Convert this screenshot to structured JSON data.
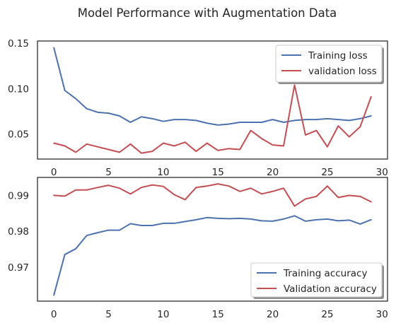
{
  "chart_data": {
    "title": "Model Performance with Augmentation Data",
    "colors": {
      "training": "#4c72b0",
      "validation": "#c44e52"
    },
    "charts": [
      {
        "type": "line",
        "title": "",
        "xlabel": "",
        "ylabel": "",
        "xlim": [
          -1.5,
          30.5
        ],
        "ylim": [
          0.0225,
          0.1525
        ],
        "xticks": [
          0,
          5,
          10,
          15,
          20,
          25,
          30
        ],
        "yticks": [
          0.05,
          0.1,
          0.15
        ],
        "ytick_labels": [
          "0.05",
          "0.10",
          "0.15"
        ],
        "legend": "top-right",
        "grid": false,
        "x": [
          0,
          1,
          2,
          3,
          4,
          5,
          6,
          7,
          8,
          9,
          10,
          11,
          12,
          13,
          14,
          15,
          16,
          17,
          18,
          19,
          20,
          21,
          22,
          23,
          24,
          25,
          26,
          27,
          28,
          29
        ],
        "series": [
          {
            "name": "Training loss",
            "color_key": "training",
            "values": [
              0.145,
              0.098,
              0.089,
              0.078,
              0.074,
              0.073,
              0.07,
              0.063,
              0.069,
              0.067,
              0.064,
              0.066,
              0.066,
              0.065,
              0.062,
              0.06,
              0.061,
              0.063,
              0.063,
              0.063,
              0.066,
              0.063,
              0.065,
              0.066,
              0.066,
              0.067,
              0.066,
              0.065,
              0.067,
              0.07
            ]
          },
          {
            "name": "validation loss",
            "color_key": "validation",
            "values": [
              0.04,
              0.037,
              0.03,
              0.039,
              0.036,
              0.033,
              0.03,
              0.039,
              0.029,
              0.031,
              0.04,
              0.037,
              0.041,
              0.031,
              0.04,
              0.032,
              0.034,
              0.033,
              0.054,
              0.045,
              0.038,
              0.037,
              0.104,
              0.049,
              0.054,
              0.036,
              0.059,
              0.047,
              0.058,
              0.091
            ]
          }
        ]
      },
      {
        "type": "line",
        "title": "",
        "xlabel": "",
        "ylabel": "",
        "xlim": [
          -1.5,
          30.5
        ],
        "ylim": [
          0.9605,
          0.995
        ],
        "xticks": [
          0,
          5,
          10,
          15,
          20,
          25,
          30
        ],
        "yticks": [
          0.97,
          0.98,
          0.99
        ],
        "ytick_labels": [
          "0.97",
          "0.98",
          "0.99"
        ],
        "legend": "bottom-right",
        "grid": false,
        "x": [
          0,
          1,
          2,
          3,
          4,
          5,
          6,
          7,
          8,
          9,
          10,
          11,
          12,
          13,
          14,
          15,
          16,
          17,
          18,
          19,
          20,
          21,
          22,
          23,
          24,
          25,
          26,
          27,
          28,
          29
        ],
        "series": [
          {
            "name": "Training accuracy",
            "color_key": "training",
            "values": [
              0.9622,
              0.9735,
              0.9751,
              0.9788,
              0.9796,
              0.9803,
              0.9803,
              0.9821,
              0.9816,
              0.9816,
              0.9822,
              0.9822,
              0.9827,
              0.9832,
              0.9838,
              0.9836,
              0.9835,
              0.9836,
              0.9834,
              0.9829,
              0.9828,
              0.9834,
              0.9843,
              0.9828,
              0.9832,
              0.9834,
              0.9829,
              0.9831,
              0.982,
              0.9832
            ]
          },
          {
            "name": "Validation accuracy",
            "color_key": "validation",
            "values": [
              0.99,
              0.9898,
              0.9915,
              0.9915,
              0.9922,
              0.9928,
              0.992,
              0.9904,
              0.9922,
              0.9929,
              0.9925,
              0.9902,
              0.9888,
              0.9922,
              0.9926,
              0.9932,
              0.9926,
              0.9911,
              0.992,
              0.9904,
              0.9911,
              0.992,
              0.987,
              0.989,
              0.9897,
              0.9926,
              0.9894,
              0.99,
              0.9897,
              0.9882
            ]
          }
        ]
      }
    ]
  }
}
